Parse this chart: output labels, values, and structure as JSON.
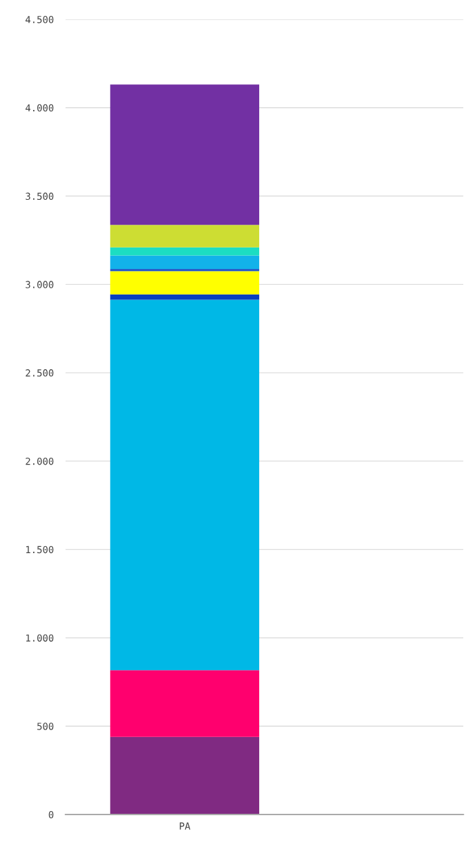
{
  "chart_data": {
    "type": "bar",
    "stacked": true,
    "categories": [
      "PA"
    ],
    "series": [
      {
        "color": "#802a82",
        "values": [
          439
        ]
      },
      {
        "color": "#ff006e",
        "values": [
          378
        ]
      },
      {
        "color": "#00b8e6",
        "values": [
          2096
        ]
      },
      {
        "color": "#0a3fbf",
        "values": [
          31
        ]
      },
      {
        "color": "#ffff00",
        "values": [
          131
        ]
      },
      {
        "color": "#2a5cc8",
        "values": [
          12
        ]
      },
      {
        "color": "#12b2ea",
        "values": [
          77
        ]
      },
      {
        "color": "#1cddc2",
        "values": [
          46
        ]
      },
      {
        "color": "#cddd33",
        "values": [
          127
        ]
      },
      {
        "color": "#7230a3",
        "values": [
          794
        ]
      }
    ],
    "ylim": [
      0,
      4500
    ],
    "yticks": [
      {
        "value": 0,
        "label": "0"
      },
      {
        "value": 500,
        "label": "500"
      },
      {
        "value": 1000,
        "label": "1.000"
      },
      {
        "value": 1500,
        "label": "1.500"
      },
      {
        "value": 2000,
        "label": "2.000"
      },
      {
        "value": 2500,
        "label": "2.500"
      },
      {
        "value": 3000,
        "label": "3.000"
      },
      {
        "value": 3500,
        "label": "3.500"
      },
      {
        "value": 4000,
        "label": "4.000"
      },
      {
        "value": 4500,
        "label": "4.500"
      }
    ],
    "grid": "y"
  }
}
